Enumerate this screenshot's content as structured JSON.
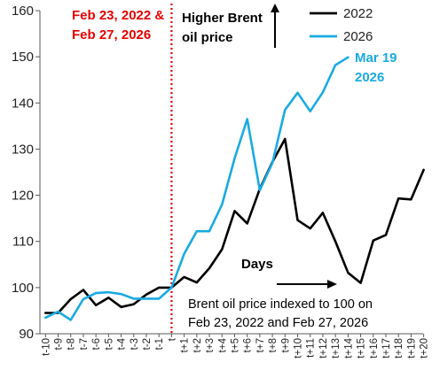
{
  "chart_data": {
    "type": "line",
    "categories": [
      "t-10",
      "t-9",
      "t-8",
      "t-7",
      "t-6",
      "t-5",
      "t-4",
      "t-3",
      "t-2",
      "t-1",
      "t",
      "t+1",
      "t+2",
      "t+3",
      "t+4",
      "t+5",
      "t+6",
      "t+7",
      "t+8",
      "t+9",
      "t+10",
      "t+11",
      "t+12",
      "t+13",
      "t+14",
      "t+15",
      "t+16",
      "t+17",
      "t+18",
      "t+19",
      "t+20"
    ],
    "ylim": [
      90,
      160
    ],
    "yticks": [
      "90",
      "100",
      "110",
      "120",
      "130",
      "140",
      "150",
      "160"
    ],
    "grid": false,
    "legend_position": "top-right",
    "series": [
      {
        "name": "2022",
        "color": "#000000",
        "values": [
          94.5,
          94.5,
          97.5,
          99.5,
          96.2,
          97.8,
          95.8,
          96.4,
          98.5,
          100,
          100,
          102.3,
          101.1,
          104.2,
          108.3,
          116.6,
          113.9,
          121.4,
          127.2,
          132.2,
          114.6,
          112.8,
          116.2,
          110.0,
          103.2,
          101.0,
          110.2,
          111.4,
          119.3,
          119.1,
          125.5
        ]
      },
      {
        "name": "2026",
        "color": "#1AAAE1",
        "values": [
          93.5,
          94.8,
          93.0,
          97.5,
          98.8,
          99.0,
          98.6,
          97.6,
          97.6,
          97.6,
          100,
          107.3,
          112.2,
          112.2,
          118.0,
          128.0,
          136.5,
          121.1,
          127.0,
          138.5,
          142.2,
          138.2,
          142.3,
          148.2,
          149.9,
          null,
          null,
          null,
          null,
          null,
          null
        ]
      }
    ],
    "annotations": {
      "event_line": "Feb 23, 2022 & Feb 27, 2026",
      "arrow_up": "Higher Brent oil price",
      "arrow_right": "Days",
      "last_point": "Mar 19 2026",
      "note": "Brent oil price indexed to 100 on Feb 23, 2022 and Feb 27, 2026"
    }
  },
  "colors": {
    "event": "#E60000",
    "axis": "#595959"
  }
}
